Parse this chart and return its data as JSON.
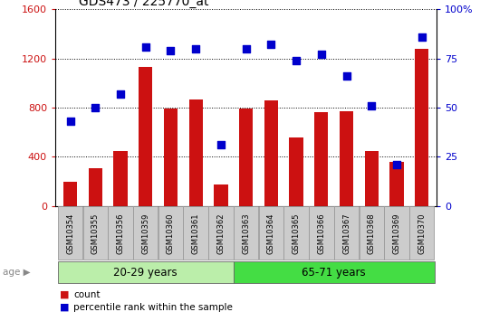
{
  "title": "GDS473 / 225770_at",
  "samples": [
    "GSM10354",
    "GSM10355",
    "GSM10356",
    "GSM10359",
    "GSM10360",
    "GSM10361",
    "GSM10362",
    "GSM10363",
    "GSM10364",
    "GSM10365",
    "GSM10366",
    "GSM10367",
    "GSM10368",
    "GSM10369",
    "GSM10370"
  ],
  "counts": [
    200,
    310,
    450,
    1130,
    790,
    870,
    175,
    790,
    860,
    560,
    760,
    770,
    445,
    355,
    1280
  ],
  "percentiles": [
    43,
    50,
    57,
    81,
    79,
    80,
    31,
    80,
    82,
    74,
    77,
    66,
    51,
    21,
    86
  ],
  "group1_label": "20-29 years",
  "group2_label": "65-71 years",
  "group1_count": 7,
  "ylim_left": [
    0,
    1600
  ],
  "ylim_right": [
    0,
    100
  ],
  "yticks_left": [
    0,
    400,
    800,
    1200,
    1600
  ],
  "yticks_right": [
    0,
    25,
    50,
    75,
    100
  ],
  "bar_color": "#cc1111",
  "dot_color": "#0000cc",
  "group1_color": "#bbeeaa",
  "group2_color": "#44dd44",
  "tick_color_left": "#cc1111",
  "tick_color_right": "#0000cc",
  "bg_color": "#ffffff",
  "grid_color": "#000000",
  "label_bg": "#cccccc",
  "label_border": "#999999",
  "age_arrow_color": "#888888",
  "legend_bar_color": "#cc1111",
  "legend_dot_color": "#0000cc"
}
